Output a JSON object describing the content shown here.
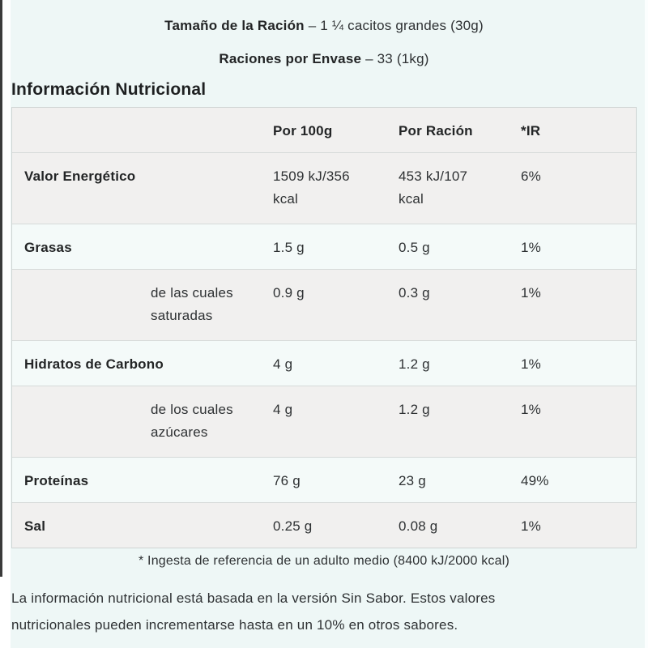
{
  "colors": {
    "page_bg": "#eef7f6",
    "row_gray": "#f1f0ef",
    "row_mint": "#f4faf9",
    "border": "#d6dad9",
    "text": "#2e3133",
    "left_edge": "#3b3b3b"
  },
  "header_info": {
    "serving_size_label": "Tamaño de la Ración",
    "serving_size_value": "– 1 ¼ cacitos grandes (30g)",
    "servings_label": "Raciones por Envase",
    "servings_value": "– 33 (1kg)"
  },
  "section_title": "Información Nutricional",
  "nutrition_table": {
    "columns": [
      "",
      "Por 100g",
      "Por Ración",
      "*IR"
    ],
    "column_names": [
      "label",
      "por-100g",
      "por-racion",
      "ir"
    ],
    "rows": [
      {
        "name": "valor-energetico",
        "label": "Valor Energético",
        "sub": false,
        "per_100g": "1509 kJ/356\nkcal",
        "per_racion": "453 kJ/107\nkcal",
        "ir": "6%"
      },
      {
        "name": "grasas",
        "label": "Grasas",
        "sub": false,
        "per_100g": "1.5 g",
        "per_racion": "0.5 g",
        "ir": "1%"
      },
      {
        "name": "grasas-saturadas",
        "label": "de las cuales\nsaturadas",
        "sub": true,
        "per_100g": "0.9 g",
        "per_racion": "0.3 g",
        "ir": "1%"
      },
      {
        "name": "hidratos-de-carbono",
        "label": "Hidratos de Carbono",
        "sub": false,
        "per_100g": "4 g",
        "per_racion": "1.2 g",
        "ir": "1%"
      },
      {
        "name": "azucares",
        "label": "de los cuales\nazúcares",
        "sub": true,
        "per_100g": "4 g",
        "per_racion": "1.2 g",
        "ir": "1%"
      },
      {
        "name": "proteinas",
        "label": "Proteínas",
        "sub": false,
        "per_100g": "76 g",
        "per_racion": "23 g",
        "ir": "49%"
      },
      {
        "name": "sal",
        "label": "Sal",
        "sub": false,
        "per_100g": "0.25 g",
        "per_racion": "0.08 g",
        "ir": "1%"
      }
    ]
  },
  "footnote": "* Ingesta de referencia de un adulto medio (8400 kJ/2000 kcal)",
  "disclaimer": "La información nutricional está basada en la versión Sin Sabor. Estos valores\nnutricionales pueden incrementarse hasta en un 10% en otros sabores."
}
